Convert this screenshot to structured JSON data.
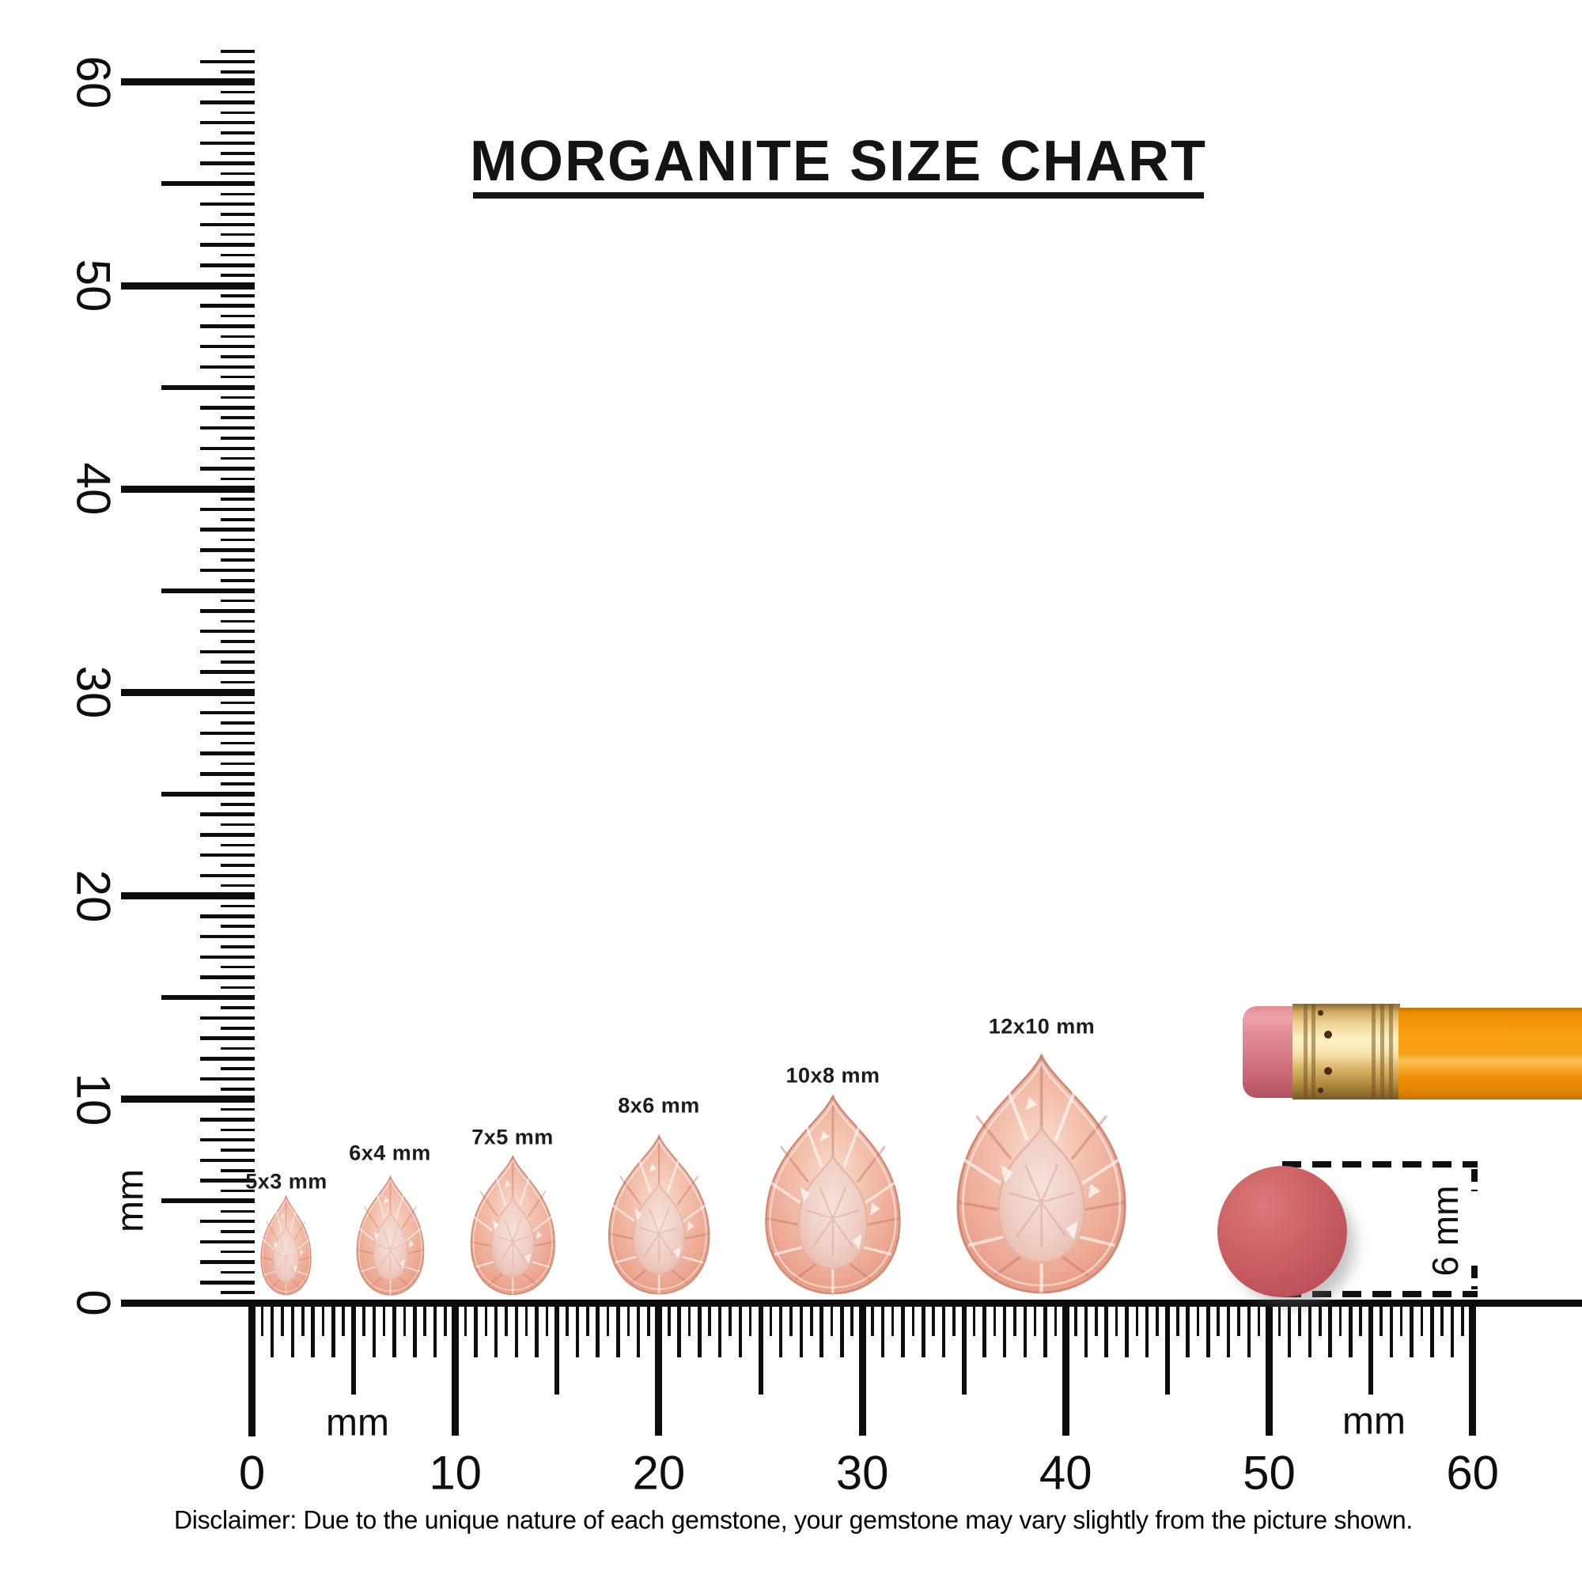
{
  "title": "MORGANITE SIZE CHART",
  "rulers": {
    "unit": "mm",
    "vertical": {
      "unit_label": "mm",
      "numbers": [
        {
          "mm": 0,
          "label": "0"
        },
        {
          "mm": 10,
          "label": "10"
        },
        {
          "mm": 20,
          "label": "20"
        },
        {
          "mm": 30,
          "label": "30"
        },
        {
          "mm": 40,
          "label": "40"
        },
        {
          "mm": 50,
          "label": "50"
        },
        {
          "mm": 60,
          "label": "60"
        }
      ],
      "max_mm": 61.5,
      "tick_step_mm": 0.5
    },
    "horizontal": {
      "unit_label": "mm",
      "numbers": [
        {
          "mm": 0,
          "label": "0"
        },
        {
          "mm": 10,
          "label": "10"
        },
        {
          "mm": 20,
          "label": "20"
        },
        {
          "mm": 30,
          "label": "30"
        },
        {
          "mm": 40,
          "label": "40"
        },
        {
          "mm": 50,
          "label": "50"
        },
        {
          "mm": 60,
          "label": "60"
        }
      ],
      "max_mm": 60,
      "tick_step_mm": 0.5
    }
  },
  "stones": [
    {
      "label": "5x3 mm",
      "length_mm": 5,
      "width_mm": 3
    },
    {
      "label": "6x4 mm",
      "length_mm": 6,
      "width_mm": 4
    },
    {
      "label": "7x5 mm",
      "length_mm": 7,
      "width_mm": 5
    },
    {
      "label": "8x6 mm",
      "length_mm": 8,
      "width_mm": 6
    },
    {
      "label": "10x8 mm",
      "length_mm": 10,
      "width_mm": 8
    },
    {
      "label": "12x10 mm",
      "length_mm": 12,
      "width_mm": 10
    }
  ],
  "eraser_measure": {
    "label": "6 mm",
    "diameter_mm": 6
  },
  "colors": {
    "ink": "#0d0d0d",
    "gem_light": "#f9e0d4",
    "gem_mid": "#f0b5a2",
    "gem_deep": "#dd8a74",
    "gem_table": "#efcfc5",
    "pencil_body": "#f89f10",
    "pencil_ferrule": "#f0d79c",
    "pencil_eraser": "#d67a85",
    "eraser_top": "#c75b61"
  },
  "disclaimer": "Disclaimer: Due to the unique nature of each gemstone, your gemstone may vary slightly from the picture shown."
}
